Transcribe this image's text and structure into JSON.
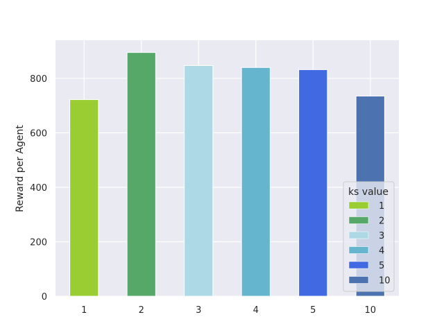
{
  "chart_data": {
    "type": "bar",
    "categories": [
      "1",
      "2",
      "3",
      "4",
      "5",
      "10"
    ],
    "values": [
      722,
      895,
      847,
      840,
      832,
      735
    ],
    "colors": [
      "#9acd32",
      "#55a868",
      "#add8e6",
      "#64b5cd",
      "#4169e1",
      "#4c72b0"
    ],
    "title": "",
    "xlabel": "",
    "ylabel": "Reward per Agent",
    "ylim": [
      0,
      940
    ],
    "yticks": [
      0,
      200,
      400,
      600,
      800
    ],
    "grid": true,
    "legend": {
      "title": "ks value",
      "position": "lower-right",
      "entries": [
        "1",
        "2",
        "3",
        "4",
        "5",
        "10"
      ]
    }
  }
}
